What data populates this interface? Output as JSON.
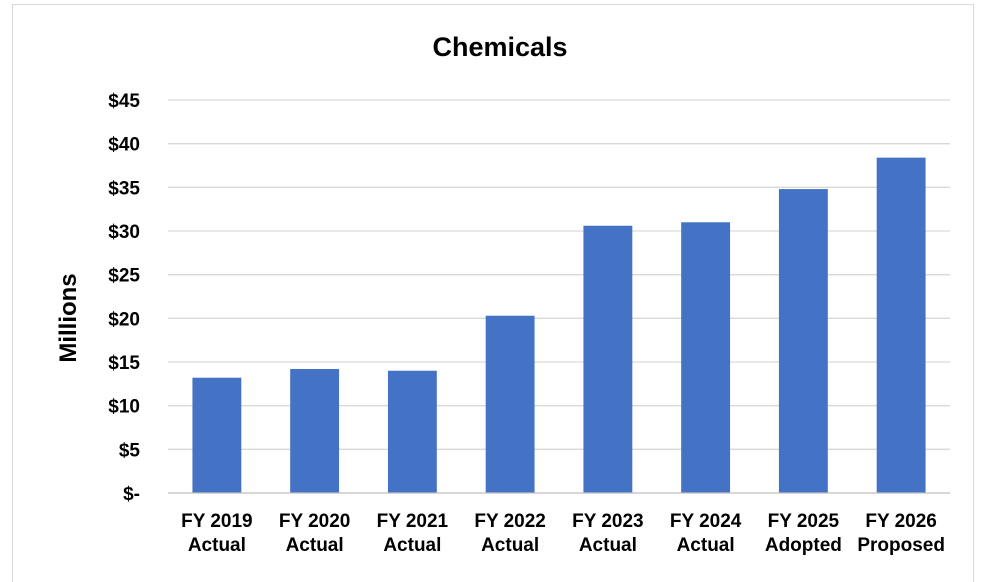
{
  "chart_data": {
    "type": "bar",
    "title": "Chemicals",
    "ylabel": "Millions",
    "xlabel": "",
    "categories": [
      [
        "FY 2019",
        "Actual"
      ],
      [
        "FY 2020",
        "Actual"
      ],
      [
        "FY 2021",
        "Actual"
      ],
      [
        "FY 2022",
        "Actual"
      ],
      [
        "FY 2023",
        "Actual"
      ],
      [
        "FY 2024",
        "Actual"
      ],
      [
        "FY 2025",
        "Adopted"
      ],
      [
        "FY 2026",
        "Proposed"
      ]
    ],
    "values": [
      13.2,
      14.2,
      14.0,
      20.3,
      30.6,
      31.0,
      34.8,
      38.4
    ],
    "ylim": [
      0,
      45
    ],
    "yticks": [
      0,
      5,
      10,
      15,
      20,
      25,
      30,
      35,
      40,
      45
    ],
    "ytick_labels": [
      "$-",
      "$5",
      "$10",
      "$15",
      "$20",
      "$25",
      "$30",
      "$35",
      "$40",
      "$45"
    ],
    "grid": true,
    "legend": "none",
    "bar_color": "#4472c4"
  }
}
